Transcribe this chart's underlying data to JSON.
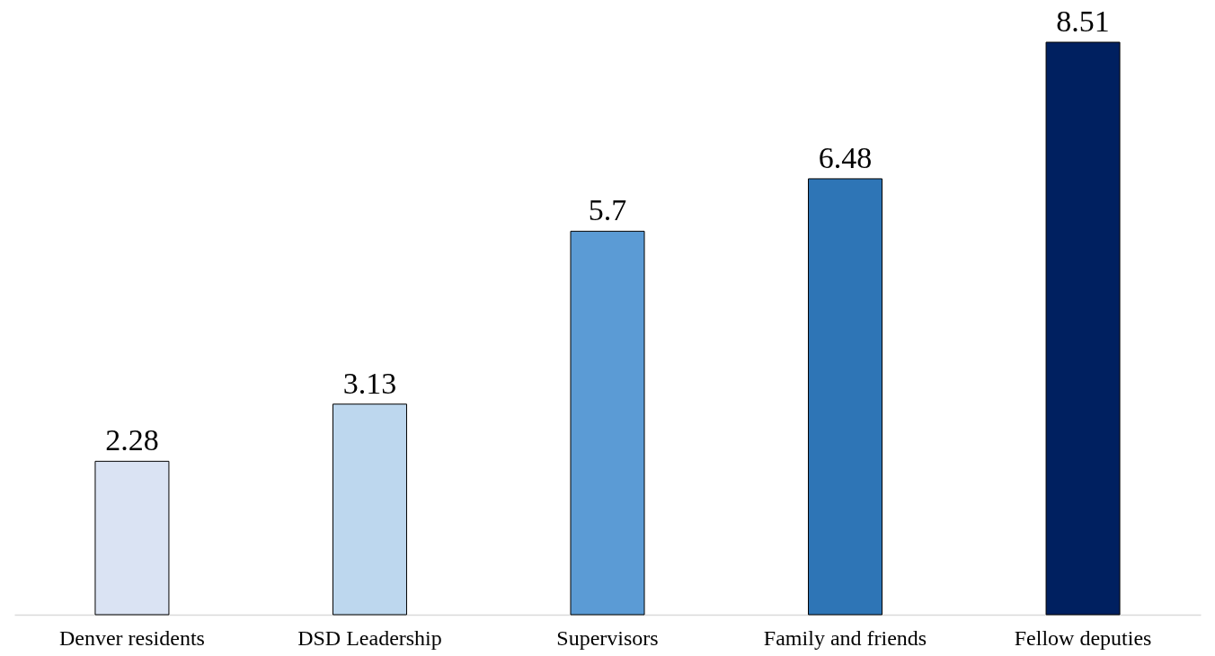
{
  "chart_data": {
    "type": "bar",
    "categories": [
      "Denver residents",
      "DSD Leadership",
      "Supervisors",
      "Family and friends",
      "Fellow deputies"
    ],
    "values": [
      2.28,
      3.13,
      5.7,
      6.48,
      8.51
    ],
    "colors": [
      "#dae3f3",
      "#bdd7ee",
      "#5b9bd5",
      "#2e75b6",
      "#002060"
    ],
    "data_labels": true
  }
}
